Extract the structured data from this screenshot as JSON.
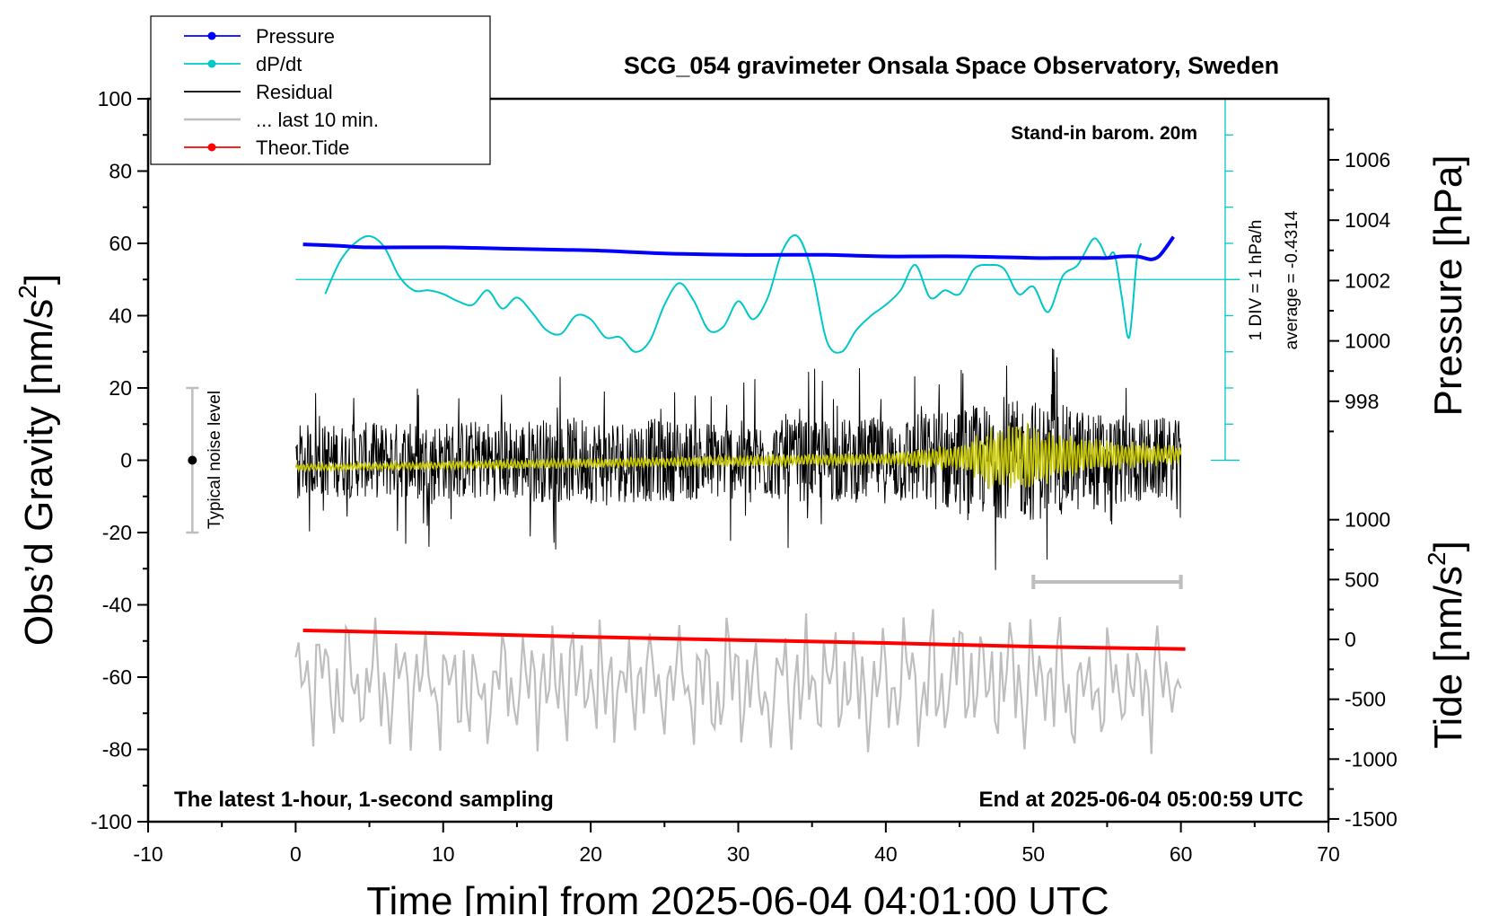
{
  "chart_data": {
    "type": "line",
    "title": "SCG_054 gravimeter Onsala Space Observatory, Sweden",
    "xlabel": "Time [min] from 2025-06-04 04:01:00 UTC",
    "ylabel_left": "Obs’d Gravity [nm/s",
    "ylabel_left_sup": "2",
    "ylabel_left_close": "]",
    "ylabel_right_pressure": "Pressure [hPa]",
    "ylabel_right_tide": "Tide [nm/s",
    "ylabel_right_tide_sup": "2",
    "ylabel_right_tide_close": "]",
    "xlim": [
      -10,
      70
    ],
    "ylim": [
      -100,
      100
    ],
    "pressure_lim": [
      996,
      1008
    ],
    "tide_lim": [
      -1500,
      1500
    ],
    "x_ticks": [
      "-10",
      "0",
      "10",
      "20",
      "30",
      "40",
      "50",
      "60",
      "70"
    ],
    "y_ticks": [
      "-100",
      "-80",
      "-60",
      "-40",
      "-20",
      "0",
      "20",
      "40",
      "60",
      "80",
      "100"
    ],
    "pressure_ticks": [
      "998",
      "1000",
      "1002",
      "1004",
      "1006"
    ],
    "tide_ticks": [
      "-1500",
      "-1000",
      "-500",
      "0",
      "500",
      "1000"
    ],
    "annotations": {
      "barometer": "Stand-in barom. 20m",
      "latest": "The latest 1-hour, 1-second sampling",
      "end": "End at 2025-06-04 05:00:59 UTC",
      "noise": "Typical noise level",
      "div": "1 DIV = 1 hPa/h",
      "average": "average = -0.4314"
    },
    "legend": {
      "placement": "top-left",
      "entries": [
        {
          "label": "Pressure",
          "color": "#0000ff",
          "marker": true
        },
        {
          "label": "dP/dt",
          "color": "#00c8c8",
          "marker": true
        },
        {
          "label": "Residual",
          "color": "#000000",
          "marker": false
        },
        {
          "label": "... last 10 min.",
          "color": "#bebebe",
          "marker": false
        },
        {
          "label": "Theor.Tide",
          "color": "#ff0000",
          "marker": true
        }
      ]
    },
    "series": [
      {
        "name": "Pressure",
        "axis": "pressure_hPa",
        "color": "#0000ff",
        "x": [
          0.5,
          3,
          5,
          10,
          15,
          20,
          25,
          30,
          33,
          36,
          40,
          45,
          50,
          52,
          54,
          55,
          56,
          57,
          57.5,
          58,
          58.5,
          59,
          59.5
        ],
        "values": [
          1003.2,
          1003.15,
          1003.1,
          1003.1,
          1003.05,
          1003.0,
          1002.9,
          1002.85,
          1002.85,
          1002.85,
          1002.8,
          1002.8,
          1002.75,
          1002.75,
          1002.75,
          1002.75,
          1002.8,
          1002.8,
          1002.75,
          1002.7,
          1002.8,
          1003.1,
          1003.45
        ]
      },
      {
        "name": "dP/dt",
        "axis": "dpdt_rel",
        "color": "#00c8c8",
        "baseline_y": 50,
        "x": [
          2,
          3,
          4,
          5,
          6,
          7,
          8,
          9,
          10,
          11,
          12,
          13,
          14,
          15,
          16,
          17,
          18,
          19,
          20,
          21,
          22,
          23,
          24,
          25,
          26,
          27,
          28,
          29,
          30,
          31,
          32,
          33,
          34,
          35,
          36,
          37,
          38,
          39,
          40,
          41,
          42,
          43,
          44,
          45,
          46,
          47,
          48,
          49,
          50,
          51,
          52,
          53,
          54,
          54.5,
          55,
          55.5,
          56,
          56.5,
          57,
          57.3
        ],
        "values": [
          46,
          55,
          60,
          62,
          59,
          51,
          47,
          47,
          46,
          44,
          43,
          47,
          42,
          45,
          41,
          36,
          35,
          40,
          39,
          34,
          34,
          30,
          33,
          43,
          49,
          44,
          36,
          37,
          44,
          39,
          45,
          58,
          62,
          52,
          33,
          30,
          36,
          40,
          43,
          47,
          54,
          45,
          47,
          46,
          53,
          54,
          53,
          46,
          48,
          41,
          51,
          54,
          61,
          60,
          56,
          57,
          45,
          34,
          55,
          60
        ]
      },
      {
        "name": "Residual",
        "axis": "gravity_nm_s2",
        "color": "#000000",
        "x_range": [
          0,
          60
        ],
        "envelope": [
          [
            0,
            10
          ],
          [
            10,
            11
          ],
          [
            20,
            12
          ],
          [
            30,
            11
          ],
          [
            40,
            12
          ],
          [
            45,
            15
          ],
          [
            50,
            17
          ],
          [
            55,
            13
          ],
          [
            60,
            11
          ]
        ],
        "min": -31,
        "max": 31
      },
      {
        "name": "... last 10 min.",
        "axis": "gravity_nm_s2",
        "color": "#bebebe",
        "x_range": [
          0,
          60
        ],
        "x_window": [
          50,
          60
        ],
        "offset_y": -62,
        "min": -88,
        "max": -35
      },
      {
        "name": "Theor.Tide",
        "axis": "tide_nm_s2",
        "color": "#ff0000",
        "x": [
          0.5,
          10,
          20,
          30,
          40,
          50,
          60.3
        ],
        "values": [
          75,
          50,
          20,
          -5,
          -30,
          -60,
          -80
        ]
      },
      {
        "name": "",
        "color": "#c8c800",
        "axis": "gravity_nm_s2",
        "x_range": [
          0,
          60
        ],
        "envelope": [
          [
            0,
            1
          ],
          [
            20,
            1.5
          ],
          [
            40,
            2
          ],
          [
            45,
            4
          ],
          [
            47,
            9
          ],
          [
            49,
            11
          ],
          [
            52,
            7
          ],
          [
            56,
            4
          ],
          [
            60,
            3
          ]
        ]
      }
    ]
  }
}
